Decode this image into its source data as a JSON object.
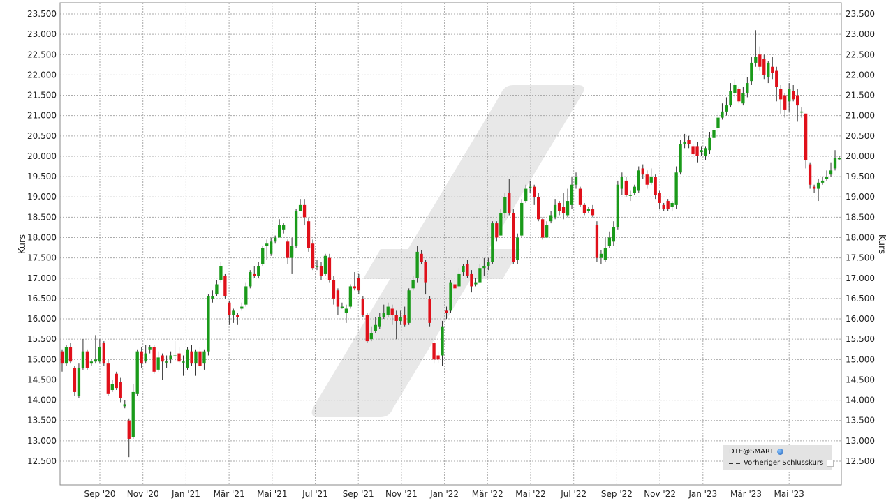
{
  "chart_data": {
    "type": "candlestick",
    "ylabel": "Kurs",
    "ylim": [
      12000,
      23600
    ],
    "y_ticks": [
      "12.500",
      "13.000",
      "13.500",
      "14.000",
      "14.500",
      "15.000",
      "15.500",
      "16.000",
      "16.500",
      "17.000",
      "17.500",
      "18.000",
      "18.500",
      "19.000",
      "19.500",
      "20.000",
      "20.500",
      "21.000",
      "21.500",
      "22.000",
      "22.500",
      "23.000",
      "23.500"
    ],
    "x_ticks": [
      "Sep '20",
      "Nov '20",
      "Jan '21",
      "Mär '21",
      "Mai '21",
      "Jul '21",
      "Sep '21",
      "Nov '21",
      "Jan '22",
      "Mär '22",
      "Mai '22",
      "Jul '22",
      "Sep '22",
      "Nov '22",
      "Jan '23",
      "Mär '23",
      "Mai '23"
    ],
    "grid": true,
    "legend_position": "bottom-right",
    "colors": {
      "up": "#1a9a1a",
      "down": "#e0101a",
      "grid": "#aaaaaa",
      "watermark": "#e8e8e8"
    },
    "candles": [
      [
        15200,
        14900,
        15250,
        14700
      ],
      [
        14900,
        15300,
        15350,
        14850
      ],
      [
        15300,
        14950,
        15400,
        14900
      ],
      [
        14800,
        14200,
        14850,
        14100
      ],
      [
        14100,
        14800,
        14900,
        14050
      ],
      [
        14800,
        15200,
        15500,
        14750
      ],
      [
        15200,
        14800,
        15250,
        14750
      ],
      [
        14900,
        14950,
        15000,
        14850
      ],
      [
        14950,
        15000,
        15600,
        14900
      ],
      [
        14950,
        15300,
        15500,
        14900
      ],
      [
        15400,
        14900,
        15450,
        14850
      ],
      [
        14900,
        14150,
        15000,
        14100
      ],
      [
        14250,
        14400,
        14500,
        14200
      ],
      [
        14650,
        14300,
        14700,
        14250
      ],
      [
        14450,
        14050,
        14550,
        13950
      ],
      [
        13850,
        13900,
        14000,
        13800
      ],
      [
        13500,
        13050,
        13550,
        12600
      ],
      [
        13100,
        14200,
        14400,
        13050
      ],
      [
        14150,
        15200,
        15250,
        14100
      ],
      [
        15200,
        14900,
        15300,
        14800
      ],
      [
        14950,
        15150,
        15350,
        14900
      ],
      [
        15250,
        15300,
        15350,
        15150
      ],
      [
        15300,
        14700,
        15350,
        14650
      ],
      [
        14750,
        15050,
        15200,
        14700
      ],
      [
        15100,
        14950,
        15150,
        14500
      ],
      [
        14950,
        14950,
        15100,
        14800
      ],
      [
        15000,
        15100,
        15200,
        14900
      ],
      [
        15100,
        15100,
        15450,
        14950
      ],
      [
        15150,
        14950,
        15300,
        14900
      ],
      [
        14950,
        14950,
        15100,
        14600
      ],
      [
        14800,
        15250,
        15300,
        14750
      ],
      [
        15200,
        14900,
        15350,
        14850
      ],
      [
        14900,
        15200,
        15250,
        14600
      ],
      [
        15200,
        14850,
        15300,
        14800
      ],
      [
        14900,
        15200,
        15250,
        14750
      ],
      [
        15200,
        16550,
        16600,
        15100
      ],
      [
        16500,
        16550,
        16700,
        16400
      ],
      [
        16600,
        16850,
        16950,
        16550
      ],
      [
        16950,
        17300,
        17400,
        16900
      ],
      [
        17050,
        16550,
        17100,
        16500
      ],
      [
        16400,
        16100,
        16450,
        15850
      ],
      [
        16100,
        16200,
        16250,
        15900
      ],
      [
        16100,
        16050,
        16150,
        15850
      ],
      [
        16250,
        16300,
        16400,
        16200
      ],
      [
        16350,
        16800,
        16900,
        16300
      ],
      [
        16800,
        17150,
        17200,
        16750
      ],
      [
        17100,
        17050,
        17300,
        17000
      ],
      [
        17050,
        17300,
        17400,
        17000
      ],
      [
        17350,
        17750,
        17800,
        17300
      ],
      [
        17800,
        17850,
        17950,
        17450
      ],
      [
        17600,
        17900,
        18000,
        17550
      ],
      [
        17900,
        18000,
        18050,
        17850
      ],
      [
        18000,
        18300,
        18450,
        18000
      ],
      [
        18200,
        18300,
        18350,
        18100
      ],
      [
        17900,
        17500,
        17950,
        17350
      ],
      [
        17500,
        17800,
        18000,
        17100
      ],
      [
        17800,
        18650,
        18700,
        17750
      ],
      [
        18650,
        18800,
        18950,
        18700
      ],
      [
        18800,
        18500,
        18950,
        18300
      ],
      [
        18400,
        17750,
        18500,
        17650
      ],
      [
        17850,
        17250,
        17950,
        17200
      ],
      [
        17300,
        17300,
        17450,
        17200
      ],
      [
        17300,
        17050,
        17400,
        16950
      ],
      [
        17100,
        17550,
        17600,
        17050
      ],
      [
        17500,
        16950,
        17600,
        16900
      ],
      [
        16950,
        16500,
        17050,
        16350
      ],
      [
        16700,
        16300,
        16750,
        16100
      ],
      [
        16300,
        16300,
        16400,
        16250
      ],
      [
        16150,
        16250,
        16350,
        15900
      ],
      [
        16300,
        16800,
        16850,
        16250
      ],
      [
        16800,
        16750,
        17150,
        16700
      ],
      [
        17000,
        16700,
        17100,
        16600
      ],
      [
        16500,
        16100,
        16550,
        16050
      ],
      [
        16100,
        15450,
        16150,
        15400
      ],
      [
        15500,
        15650,
        15800,
        15450
      ],
      [
        15700,
        15850,
        16050,
        15650
      ],
      [
        15800,
        16050,
        16150,
        15750
      ],
      [
        16050,
        16150,
        16350,
        16000
      ],
      [
        16100,
        16300,
        16400,
        16050
      ],
      [
        16250,
        16100,
        16350,
        15850
      ],
      [
        16100,
        15950,
        16200,
        15500
      ],
      [
        15950,
        16050,
        16200,
        15850
      ],
      [
        16100,
        15850,
        16300,
        15800
      ],
      [
        15900,
        16700,
        16750,
        15850
      ],
      [
        16750,
        16950,
        17050,
        16700
      ],
      [
        17000,
        17650,
        17800,
        16900
      ],
      [
        17600,
        17400,
        17700,
        17350
      ],
      [
        17400,
        16900,
        17450,
        16600
      ],
      [
        16500,
        15900,
        16550,
        15800
      ],
      [
        15400,
        15000,
        15450,
        14900
      ],
      [
        15100,
        15000,
        15200,
        14900
      ],
      [
        15100,
        15800,
        15950,
        14850
      ],
      [
        16200,
        16150,
        16300,
        16000
      ],
      [
        16200,
        16900,
        16950,
        16150
      ],
      [
        16850,
        16750,
        16950,
        16700
      ],
      [
        16800,
        17100,
        17250,
        16750
      ],
      [
        17150,
        17300,
        17350,
        17050
      ],
      [
        17350,
        17050,
        17450,
        17000
      ],
      [
        17100,
        16800,
        17200,
        16650
      ],
      [
        16850,
        16900,
        17000,
        16800
      ],
      [
        16900,
        17250,
        17350,
        16900
      ],
      [
        17250,
        17300,
        17500,
        17050
      ],
      [
        17300,
        17400,
        17500,
        17200
      ],
      [
        17400,
        18350,
        18400,
        17350
      ],
      [
        18350,
        18000,
        18400,
        17900
      ],
      [
        18050,
        18600,
        18700,
        18050
      ],
      [
        18600,
        19000,
        19100,
        18500
      ],
      [
        19100,
        18600,
        19450,
        18550
      ],
      [
        18600,
        17400,
        18700,
        17350
      ],
      [
        17450,
        18000,
        18100,
        17350
      ],
      [
        18050,
        18850,
        18950,
        18000
      ],
      [
        18900,
        19200,
        19300,
        18850
      ],
      [
        19250,
        19250,
        19400,
        19100
      ],
      [
        19250,
        19000,
        19300,
        18800
      ],
      [
        19000,
        18450,
        19100,
        18400
      ],
      [
        18450,
        18000,
        18500,
        17950
      ],
      [
        18000,
        18300,
        18400,
        18200
      ],
      [
        18400,
        18550,
        18650,
        18350
      ],
      [
        18500,
        18800,
        18950,
        18450
      ],
      [
        18850,
        18650,
        18900,
        18550
      ],
      [
        18750,
        18600,
        19100,
        18450
      ],
      [
        18550,
        18900,
        19200,
        18500
      ],
      [
        18800,
        19300,
        19500,
        18700
      ],
      [
        19300,
        19500,
        19600,
        19200
      ],
      [
        19200,
        18800,
        19250,
        18750
      ],
      [
        18800,
        18600,
        18850,
        18550
      ],
      [
        18650,
        18700,
        18750,
        18600
      ],
      [
        18700,
        18550,
        18800,
        18500
      ],
      [
        18300,
        17500,
        18400,
        17400
      ],
      [
        17500,
        17600,
        17700,
        17350
      ],
      [
        17450,
        17750,
        18000,
        17400
      ],
      [
        17800,
        18000,
        18150,
        17750
      ],
      [
        17900,
        18250,
        18400,
        17800
      ],
      [
        18250,
        19300,
        19400,
        18200
      ],
      [
        19200,
        19500,
        19600,
        19050
      ],
      [
        19400,
        19050,
        19500,
        19000
      ],
      [
        19050,
        19050,
        19150,
        18900
      ],
      [
        19100,
        19250,
        19300,
        19050
      ],
      [
        19150,
        19650,
        19750,
        19100
      ],
      [
        19700,
        19550,
        19800,
        19450
      ],
      [
        19550,
        19300,
        19650,
        19200
      ],
      [
        19350,
        19500,
        19700,
        19300
      ],
      [
        19500,
        19050,
        19550,
        18950
      ],
      [
        19100,
        18850,
        19150,
        18700
      ],
      [
        18800,
        18700,
        18850,
        18650
      ],
      [
        18900,
        18700,
        18950,
        18650
      ],
      [
        18750,
        18850,
        18900,
        18650
      ],
      [
        18800,
        19600,
        19750,
        18700
      ],
      [
        19600,
        20300,
        20400,
        19550
      ],
      [
        20300,
        20350,
        20550,
        20200
      ],
      [
        20400,
        20300,
        20500,
        20200
      ],
      [
        20250,
        20050,
        20300,
        19950
      ],
      [
        20250,
        20000,
        20350,
        19850
      ],
      [
        20100,
        20150,
        20250,
        20000
      ],
      [
        20000,
        20200,
        20250,
        19900
      ],
      [
        20150,
        20450,
        20600,
        20050
      ],
      [
        20450,
        20650,
        20800,
        20400
      ],
      [
        20700,
        20950,
        21100,
        20600
      ],
      [
        20950,
        21100,
        21300,
        20900
      ],
      [
        21100,
        21250,
        21450,
        21000
      ],
      [
        21250,
        21600,
        21800,
        21200
      ],
      [
        21550,
        21750,
        21900,
        21450
      ],
      [
        21650,
        21350,
        21700,
        21300
      ],
      [
        21300,
        21550,
        21700,
        21250
      ],
      [
        21550,
        21800,
        21950,
        21450
      ],
      [
        21850,
        22300,
        22450,
        21750
      ],
      [
        22300,
        22450,
        23100,
        22200
      ],
      [
        22500,
        22200,
        22700,
        22100
      ],
      [
        22400,
        22000,
        22500,
        21900
      ],
      [
        21950,
        22300,
        22350,
        21800
      ],
      [
        22200,
        22050,
        22450,
        21900
      ],
      [
        22100,
        21700,
        22200,
        21350
      ],
      [
        21650,
        21400,
        21750,
        21050
      ],
      [
        21500,
        21150,
        21550,
        20950
      ],
      [
        21350,
        21650,
        21800,
        21100
      ],
      [
        21600,
        21400,
        21750,
        21350
      ],
      [
        21500,
        21250,
        21650,
        20850
      ],
      [
        21100,
        21100,
        21200,
        20950
      ],
      [
        21050,
        19900,
        21050,
        19700
      ],
      [
        19800,
        19300,
        19850,
        19200
      ],
      [
        19250,
        19200,
        19300,
        19100
      ],
      [
        19200,
        19350,
        19450,
        18900
      ],
      [
        19350,
        19400,
        19500,
        19300
      ],
      [
        19450,
        19500,
        19650,
        19400
      ],
      [
        19550,
        19650,
        19850,
        19500
      ],
      [
        19700,
        19950,
        20150,
        19650
      ],
      [
        19950,
        19950,
        20000,
        19900
      ]
    ]
  },
  "legend": {
    "symbol_label": "DTE@SMART",
    "prev_close_label": "Vorheriger Schlusskurs"
  }
}
